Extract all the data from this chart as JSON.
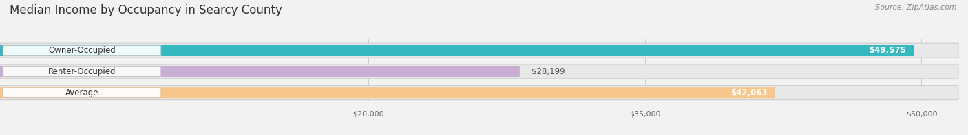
{
  "title": "Median Income by Occupancy in Searcy County",
  "source": "Source: ZipAtlas.com",
  "categories": [
    "Owner-Occupied",
    "Renter-Occupied",
    "Average"
  ],
  "values": [
    49575,
    28199,
    42063
  ],
  "bar_colors": [
    "#35b8c0",
    "#c9aed4",
    "#f7c68a"
  ],
  "value_labels": [
    "$49,575",
    "$28,199",
    "$42,063"
  ],
  "x_ticks": [
    20000,
    35000,
    50000
  ],
  "x_tick_labels": [
    "$20,000",
    "$35,000",
    "$50,000"
  ],
  "xmax": 52000,
  "background_color": "#f2f2f2",
  "bar_bg_color": "#e2e2e2",
  "label_inside_color": "#ffffff",
  "label_outside_color": "#555555",
  "title_fontsize": 12,
  "source_fontsize": 8,
  "tick_fontsize": 8,
  "bar_label_fontsize": 8.5,
  "category_label_fontsize": 8.5,
  "value_threshold_inside": 0.55
}
